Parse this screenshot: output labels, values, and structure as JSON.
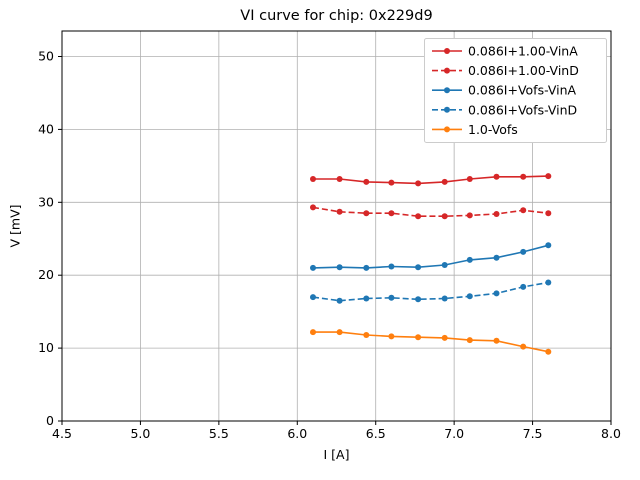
{
  "chart_data": {
    "type": "line",
    "title": "VI curve for chip: 0x229d9",
    "xlabel": "I [A]",
    "ylabel": "V [mV]",
    "xlim": [
      4.5,
      8.0
    ],
    "ylim": [
      0,
      53.5
    ],
    "xticks": [
      4.5,
      5.0,
      5.5,
      6.0,
      6.5,
      7.0,
      7.5,
      8.0
    ],
    "yticks": [
      0,
      10,
      20,
      30,
      40,
      50
    ],
    "grid": true,
    "legend_position": "upper right",
    "x": [
      6.1,
      6.27,
      6.44,
      6.6,
      6.77,
      6.94,
      7.1,
      7.27,
      7.44,
      7.6
    ],
    "series": [
      {
        "name": "0.086I+1.00-VinA",
        "color": "#d62728",
        "style": "solid",
        "values": [
          33.2,
          33.2,
          32.8,
          32.7,
          32.6,
          32.8,
          33.2,
          33.5,
          33.5,
          33.6
        ]
      },
      {
        "name": "0.086I+1.00-VinD",
        "color": "#d62728",
        "style": "dashed",
        "values": [
          29.3,
          28.7,
          28.5,
          28.5,
          28.1,
          28.1,
          28.2,
          28.4,
          28.9,
          28.5
        ]
      },
      {
        "name": "0.086I+Vofs-VinA",
        "color": "#1f77b4",
        "style": "solid",
        "values": [
          21.0,
          21.1,
          21.0,
          21.2,
          21.1,
          21.4,
          22.1,
          22.4,
          23.2,
          24.1
        ]
      },
      {
        "name": "0.086I+Vofs-VinD",
        "color": "#1f77b4",
        "style": "dashed",
        "values": [
          17.0,
          16.5,
          16.8,
          16.9,
          16.7,
          16.8,
          17.1,
          17.5,
          18.4,
          19.0
        ]
      },
      {
        "name": "1.0-Vofs",
        "color": "#ff7f0e",
        "style": "solid",
        "values": [
          12.2,
          12.2,
          11.8,
          11.6,
          11.5,
          11.4,
          11.1,
          11.0,
          10.2,
          9.5
        ]
      }
    ]
  }
}
